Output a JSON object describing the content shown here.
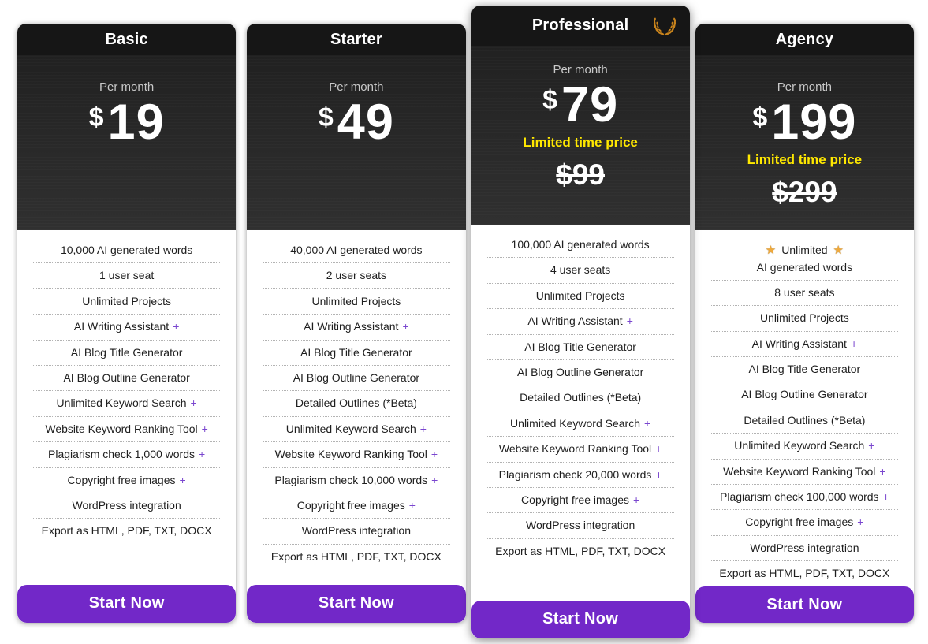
{
  "symbols": {
    "star": "★",
    "plus": "+"
  },
  "colors": {
    "button_purple": "#7228c8",
    "plus_purple": "#7a46cf",
    "promo_yellow": "#ffe800",
    "star_gold": "#f0a93b",
    "header_black": "#161616",
    "price_panel_dark": "#262626"
  },
  "plans": [
    {
      "name": "Basic",
      "billing_period": "Per month",
      "currency": "$",
      "price": "19",
      "featured": false,
      "cta_label": "Start Now",
      "features": [
        {
          "text": "10,000 AI generated words"
        },
        {
          "text": "1 user seat"
        },
        {
          "text": "Unlimited Projects"
        },
        {
          "text": "AI Writing Assistant",
          "plus": true
        },
        {
          "text": "AI Blog Title Generator"
        },
        {
          "text": "AI Blog Outline Generator"
        },
        {
          "text": "Unlimited Keyword Search",
          "plus": true
        },
        {
          "text": "Website Keyword Ranking Tool",
          "plus": true
        },
        {
          "text": "Plagiarism check 1,000 words",
          "plus": true
        },
        {
          "text": "Copyright free images",
          "plus": true
        },
        {
          "text": "WordPress integration"
        },
        {
          "text": "Export as HTML, PDF, TXT, DOCX"
        }
      ]
    },
    {
      "name": "Starter",
      "billing_period": "Per month",
      "currency": "$",
      "price": "49",
      "featured": false,
      "cta_label": "Start Now",
      "features": [
        {
          "text": "40,000 AI generated words"
        },
        {
          "text": "2 user seats"
        },
        {
          "text": "Unlimited Projects"
        },
        {
          "text": "AI Writing Assistant",
          "plus": true
        },
        {
          "text": "AI Blog Title Generator"
        },
        {
          "text": "AI Blog Outline Generator"
        },
        {
          "text": "Detailed Outlines (*Beta)"
        },
        {
          "text": "Unlimited Keyword Search",
          "plus": true
        },
        {
          "text": "Website Keyword Ranking Tool",
          "plus": true
        },
        {
          "text": "Plagiarism check 10,000 words",
          "plus": true
        },
        {
          "text": "Copyright free images",
          "plus": true
        },
        {
          "text": "WordPress integration"
        },
        {
          "text": "Export as HTML, PDF, TXT, DOCX"
        }
      ]
    },
    {
      "name": "Professional",
      "billing_period": "Per month",
      "currency": "$",
      "price": "79",
      "featured": true,
      "header_icon": "laurel-wreath-icon",
      "promo": {
        "label": "Limited time price",
        "old_price": "$99"
      },
      "cta_label": "Start Now",
      "features": [
        {
          "text": "100,000 AI generated words"
        },
        {
          "text": "4 user seats"
        },
        {
          "text": "Unlimited Projects"
        },
        {
          "text": "AI Writing Assistant",
          "plus": true
        },
        {
          "text": "AI Blog Title Generator"
        },
        {
          "text": "AI Blog Outline Generator"
        },
        {
          "text": "Detailed Outlines (*Beta)"
        },
        {
          "text": "Unlimited Keyword Search",
          "plus": true
        },
        {
          "text": "Website Keyword Ranking Tool",
          "plus": true
        },
        {
          "text": "Plagiarism check 20,000 words",
          "plus": true
        },
        {
          "text": "Copyright free images",
          "plus": true
        },
        {
          "text": "WordPress integration"
        },
        {
          "text": "Export as HTML, PDF, TXT, DOCX"
        }
      ]
    },
    {
      "name": "Agency",
      "billing_period": "Per month",
      "currency": "$",
      "price": "199",
      "featured": false,
      "promo": {
        "label": "Limited time price",
        "old_price": "$299"
      },
      "cta_label": "Start Now",
      "features": [
        {
          "text": "Unlimited",
          "starred": true,
          "subtext": "AI generated words"
        },
        {
          "text": "8 user seats"
        },
        {
          "text": "Unlimited Projects"
        },
        {
          "text": "AI Writing Assistant",
          "plus": true
        },
        {
          "text": "AI Blog Title Generator"
        },
        {
          "text": "AI Blog Outline Generator"
        },
        {
          "text": "Detailed Outlines (*Beta)"
        },
        {
          "text": "Unlimited Keyword Search",
          "plus": true
        },
        {
          "text": "Website Keyword Ranking Tool",
          "plus": true
        },
        {
          "text": "Plagiarism check 100,000 words",
          "plus": true
        },
        {
          "text": "Copyright free images",
          "plus": true
        },
        {
          "text": "WordPress integration"
        },
        {
          "text": "Export as HTML, PDF, TXT, DOCX"
        }
      ]
    }
  ]
}
